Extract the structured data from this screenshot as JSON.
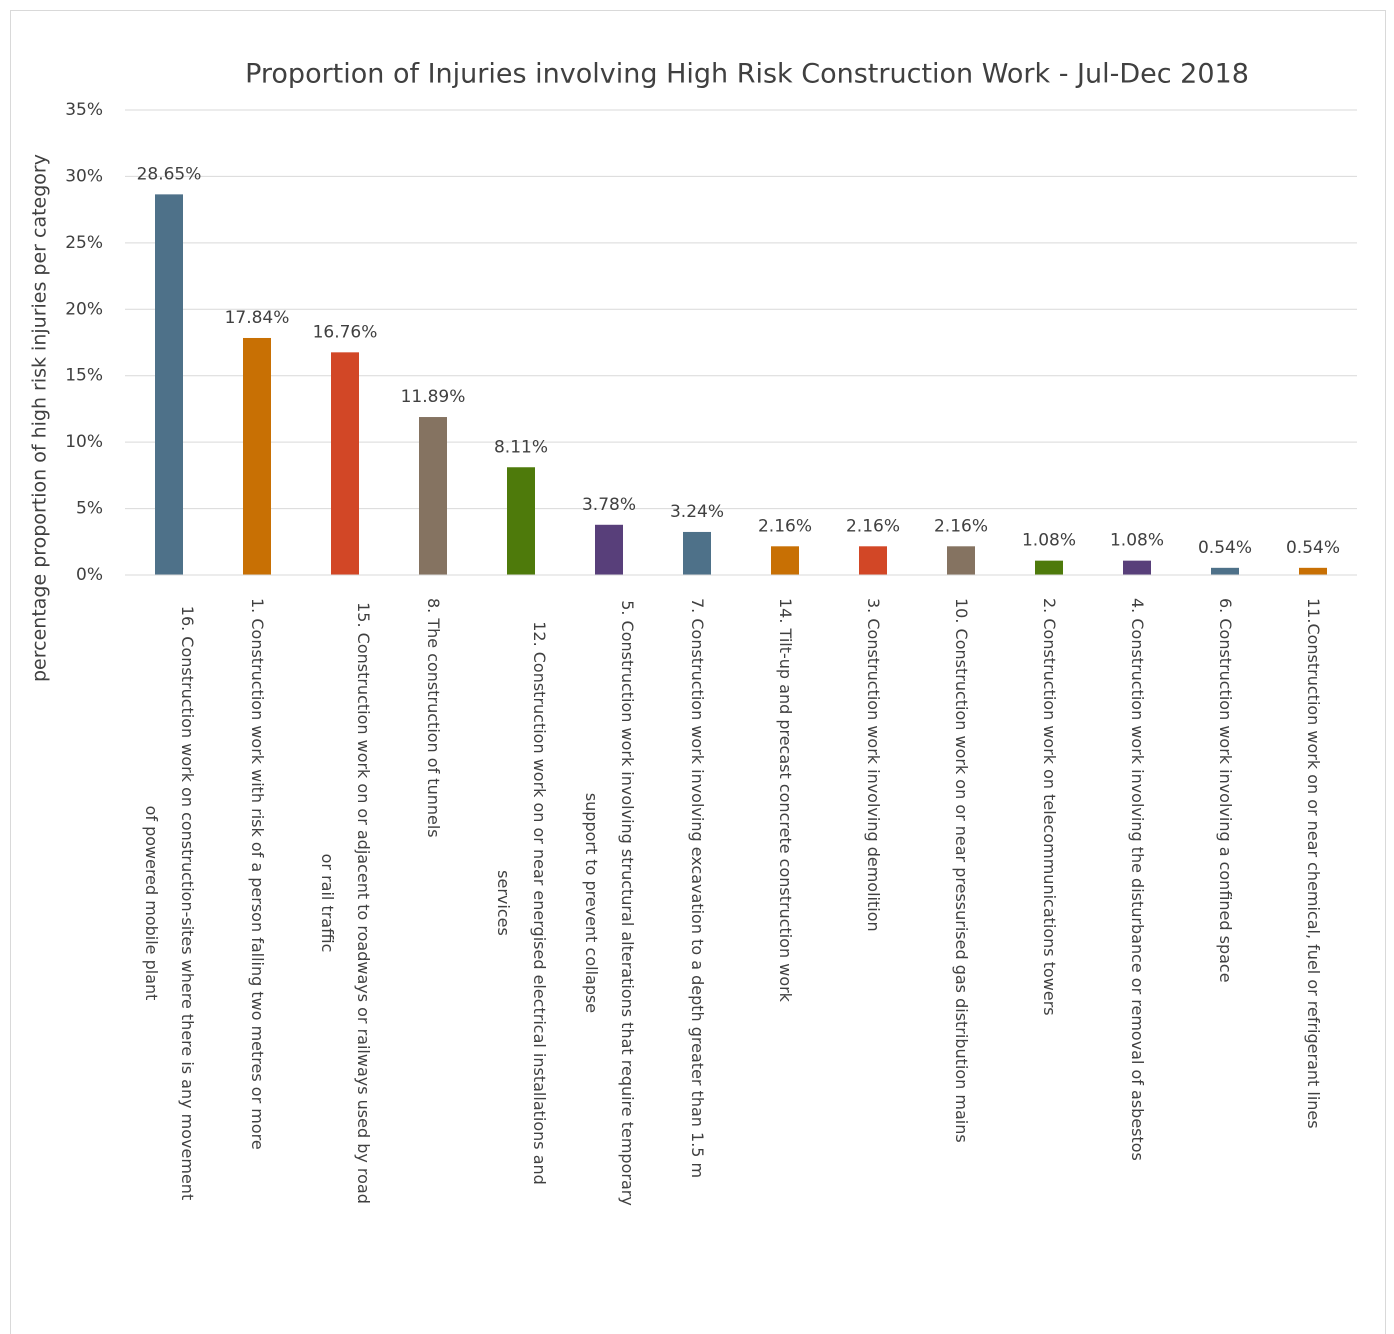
{
  "chart_data": {
    "type": "bar",
    "title": "Proportion of Injuries involving High Risk Construction Work - Jul-Dec 2018",
    "y_label": "percentage proportion of high risk injuries per category",
    "categories": [
      "16. Construction work on construction-sites where there is any movement of powered mobile plant",
      "1. Construction work with risk of a person falling two metres or more",
      "15. Construction work on or adjacent to roadways or railways used by road or rail traffic",
      "8. The construction of tunnels",
      "12. Construction work on or near energised electrical installations and services",
      "5. Construction work involving structural alterations that require temporary support to prevent collapse",
      "7. Construction work involving excavation to a depth greater than 1.5 m",
      "14. Tilt-up and precast concrete construction work",
      "3. Construction work involving demolition",
      "10. Construction work on or near pressurised gas distribution mains",
      "2. Construction work on telecommunications towers",
      "4. Construction work involving the disturbance or removal of asbestos",
      "6. Construction work involving a confined space",
      "11.Construction work on or near chemical, fuel or refrigerant lines"
    ],
    "values": [
      28.65,
      17.84,
      16.76,
      11.89,
      8.11,
      3.78,
      3.24,
      2.16,
      2.16,
      2.16,
      1.08,
      1.08,
      0.54,
      0.54
    ],
    "value_labels": [
      "28.65%",
      "17.84%",
      "16.76%",
      "11.89%",
      "8.11%",
      "3.78%",
      "3.24%",
      "2.16%",
      "2.16%",
      "2.16%",
      "1.08%",
      "1.08%",
      "0.54%",
      "0.54%"
    ],
    "colors": [
      "#4e7189",
      "#c87004",
      "#d24726",
      "#857361",
      "#4e7a0b",
      "#583f7a",
      "#4e7189",
      "#c87004",
      "#d24726",
      "#857361",
      "#4e7a0b",
      "#583f7a",
      "#4e7189",
      "#c87004"
    ],
    "ylim": [
      0,
      35
    ],
    "yticks": [
      {
        "value": 0,
        "label": "0%"
      },
      {
        "value": 5,
        "label": "5%"
      },
      {
        "value": 10,
        "label": "10%"
      },
      {
        "value": 15,
        "label": "15%"
      },
      {
        "value": 20,
        "label": "20%"
      },
      {
        "value": 25,
        "label": "25%"
      },
      {
        "value": 30,
        "label": "30%"
      },
      {
        "value": 35,
        "label": "35%"
      }
    ],
    "grid": true
  }
}
